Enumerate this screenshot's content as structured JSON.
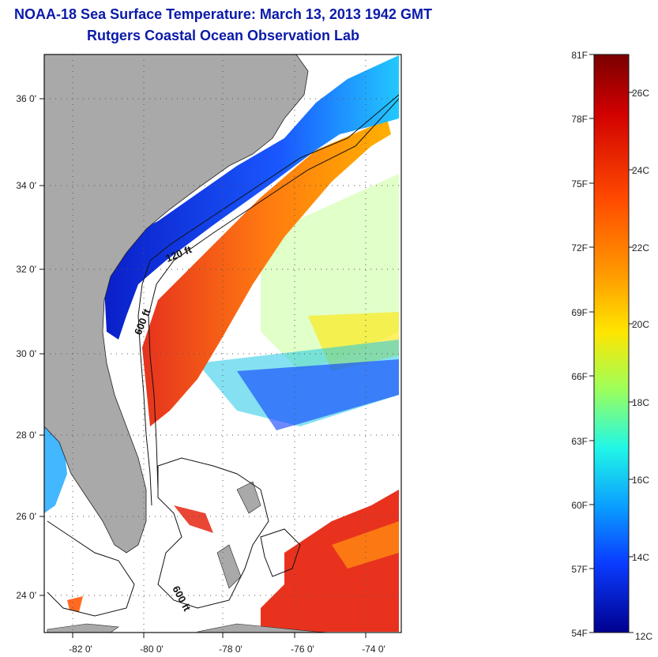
{
  "title": "NOAA-18 Sea Surface Temperature:  March 13, 2013 1942 GMT",
  "subtitle": "Rutgers Coastal Ocean Observation Lab",
  "map": {
    "lat_labels": [
      "36 0'",
      "34 0'",
      "32 0'",
      "30 0'",
      "28 0'",
      "26 0'",
      "24 0'"
    ],
    "lon_labels": [
      "-82 0'",
      "-80 0'",
      "-78 0'",
      "-76 0'",
      "-74 0'"
    ],
    "contour_labels": [
      "120 ft",
      "600 ft",
      "600 ft"
    ],
    "colors": {
      "land": "#a9a9a9",
      "cold": "#0a1ec8",
      "warm": "#e8321e"
    }
  },
  "colorbar": {
    "fahrenheit_labels": [
      "81F",
      "78F",
      "75F",
      "72F",
      "69F",
      "66F",
      "63F",
      "60F",
      "57F",
      "54F"
    ],
    "celsius_labels": [
      "26C",
      "24C",
      "22C",
      "20C",
      "18C",
      "16C",
      "14C",
      "12C"
    ],
    "colors": [
      "#7a0000",
      "#d00000",
      "#ff4a00",
      "#ff9a00",
      "#ffe600",
      "#9cff5c",
      "#21f7e6",
      "#0aa0ff",
      "#0a3cff",
      "#00008f"
    ]
  }
}
